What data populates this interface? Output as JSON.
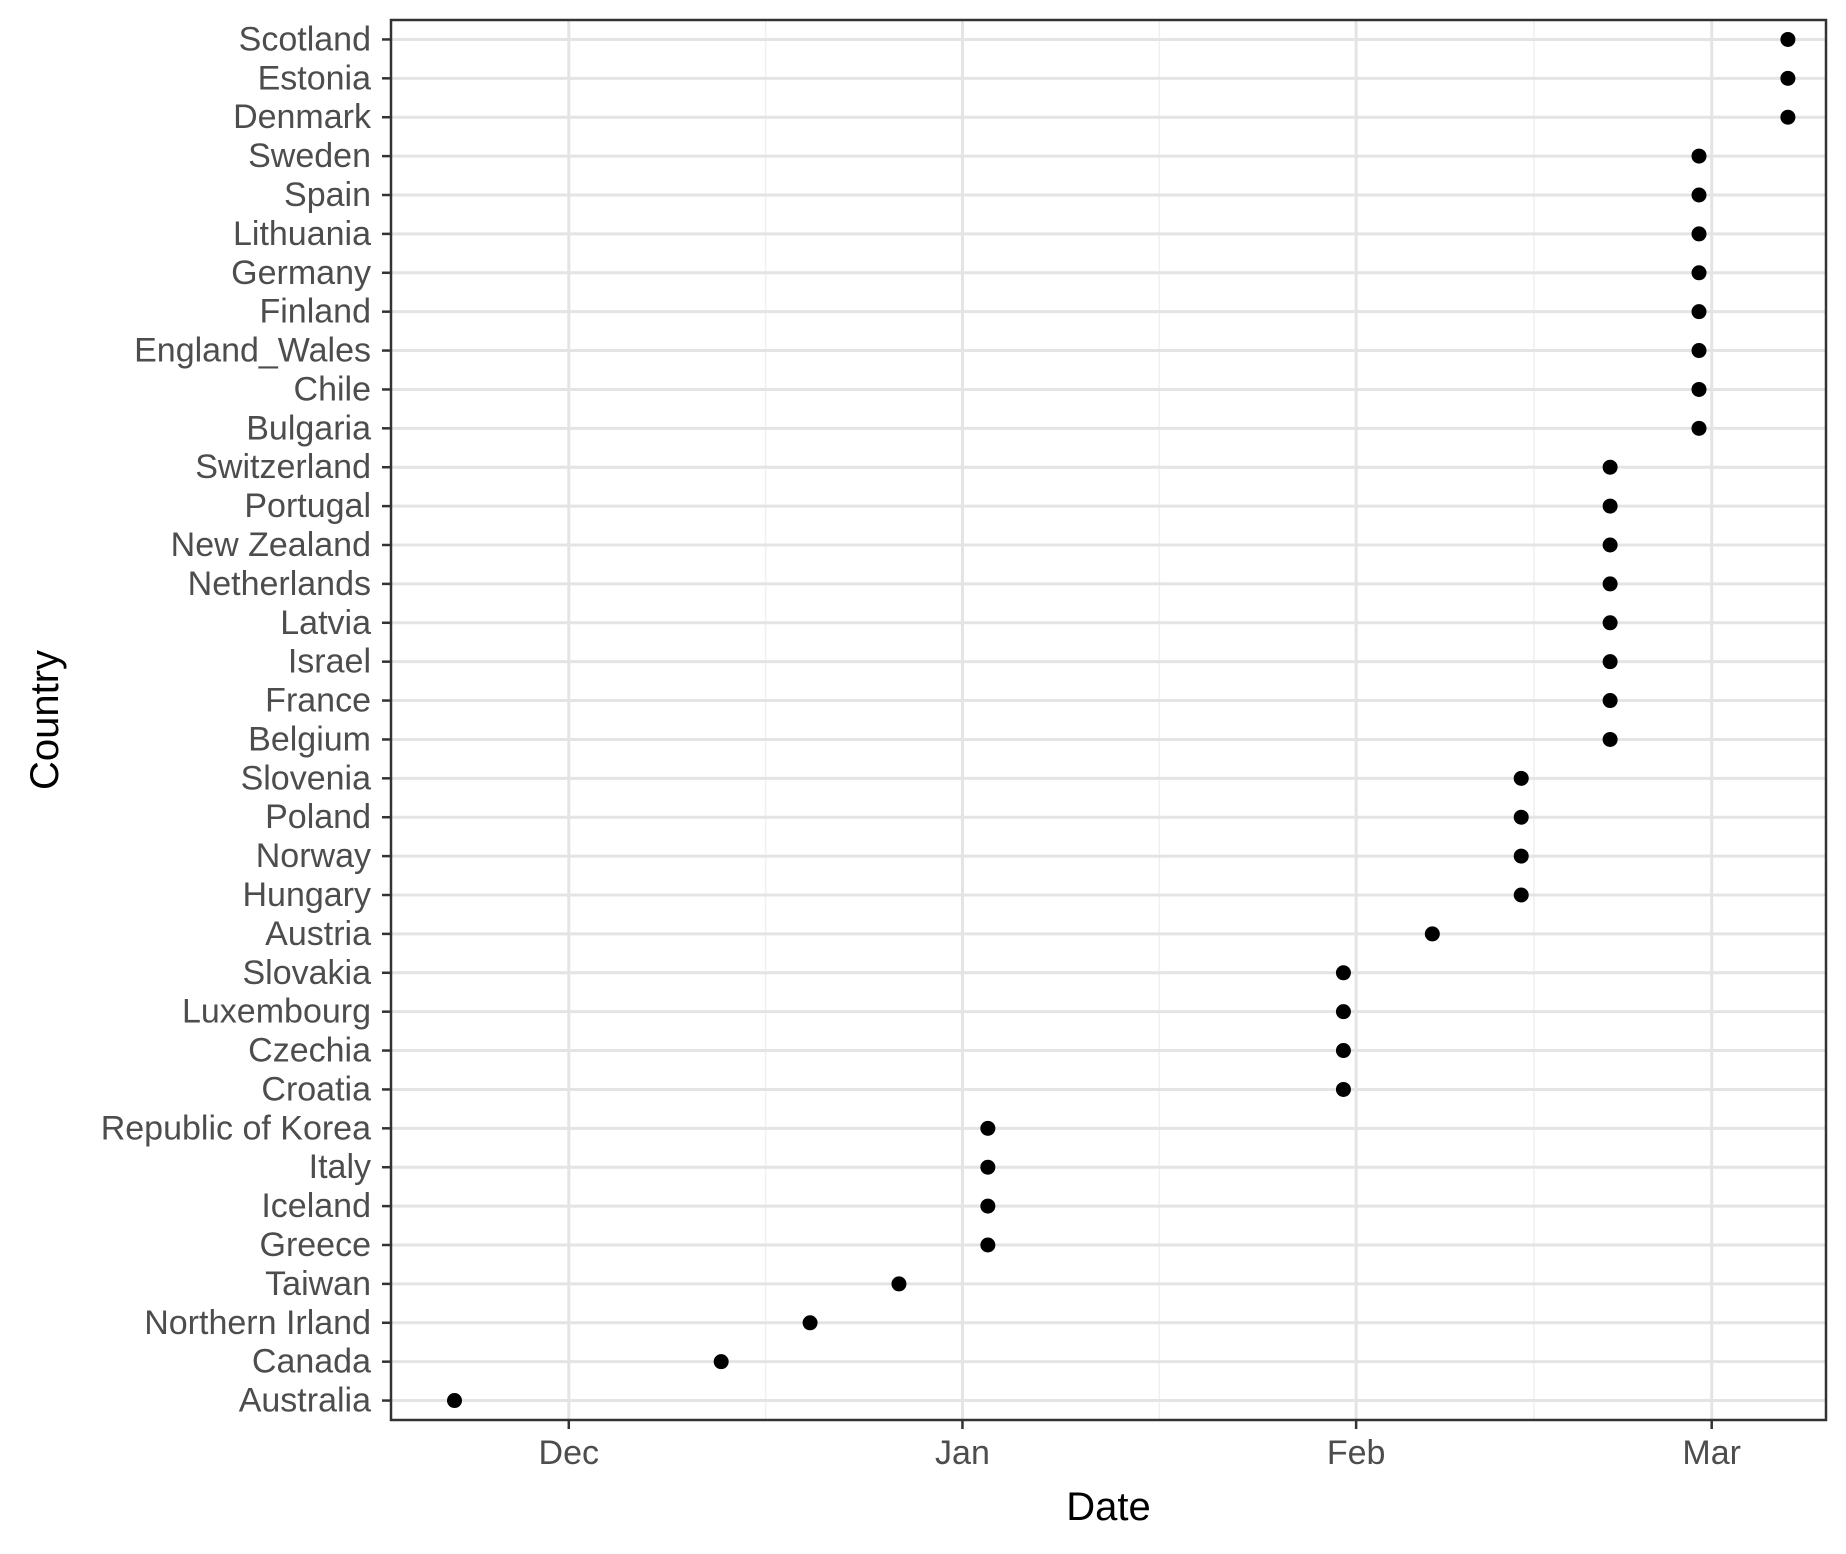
{
  "chart_data": {
    "type": "scatter",
    "title": "",
    "xlabel": "Date",
    "ylabel": "Country",
    "x_axis_type": "date",
    "xlim": [
      "2020-11-17",
      "2021-03-10"
    ],
    "x_ticks": [
      {
        "date": "2020-12-01",
        "label": "Dec"
      },
      {
        "date": "2021-01-01",
        "label": "Jan"
      },
      {
        "date": "2021-02-01",
        "label": "Feb"
      },
      {
        "date": "2021-03-01",
        "label": "Mar"
      }
    ],
    "grid": true,
    "legend": "none",
    "point_color": "#000000",
    "points": [
      {
        "country": "Australia",
        "date": "2020-11-22"
      },
      {
        "country": "Canada",
        "date": "2020-12-13"
      },
      {
        "country": "Northern Irland",
        "date": "2020-12-20"
      },
      {
        "country": "Taiwan",
        "date": "2020-12-27"
      },
      {
        "country": "Greece",
        "date": "2021-01-03"
      },
      {
        "country": "Iceland",
        "date": "2021-01-03"
      },
      {
        "country": "Italy",
        "date": "2021-01-03"
      },
      {
        "country": "Republic of Korea",
        "date": "2021-01-03"
      },
      {
        "country": "Croatia",
        "date": "2021-01-31"
      },
      {
        "country": "Czechia",
        "date": "2021-01-31"
      },
      {
        "country": "Luxembourg",
        "date": "2021-01-31"
      },
      {
        "country": "Slovakia",
        "date": "2021-01-31"
      },
      {
        "country": "Austria",
        "date": "2021-02-07"
      },
      {
        "country": "Hungary",
        "date": "2021-02-14"
      },
      {
        "country": "Norway",
        "date": "2021-02-14"
      },
      {
        "country": "Poland",
        "date": "2021-02-14"
      },
      {
        "country": "Slovenia",
        "date": "2021-02-14"
      },
      {
        "country": "Belgium",
        "date": "2021-02-21"
      },
      {
        "country": "France",
        "date": "2021-02-21"
      },
      {
        "country": "Israel",
        "date": "2021-02-21"
      },
      {
        "country": "Latvia",
        "date": "2021-02-21"
      },
      {
        "country": "Netherlands",
        "date": "2021-02-21"
      },
      {
        "country": "New Zealand",
        "date": "2021-02-21"
      },
      {
        "country": "Portugal",
        "date": "2021-02-21"
      },
      {
        "country": "Switzerland",
        "date": "2021-02-21"
      },
      {
        "country": "Bulgaria",
        "date": "2021-02-28"
      },
      {
        "country": "Chile",
        "date": "2021-02-28"
      },
      {
        "country": "England_Wales",
        "date": "2021-02-28"
      },
      {
        "country": "Finland",
        "date": "2021-02-28"
      },
      {
        "country": "Germany",
        "date": "2021-02-28"
      },
      {
        "country": "Lithuania",
        "date": "2021-02-28"
      },
      {
        "country": "Spain",
        "date": "2021-02-28"
      },
      {
        "country": "Sweden",
        "date": "2021-02-28"
      },
      {
        "country": "Denmark",
        "date": "2021-03-07"
      },
      {
        "country": "Estonia",
        "date": "2021-03-07"
      },
      {
        "country": "Scotland",
        "date": "2021-03-07"
      }
    ]
  }
}
